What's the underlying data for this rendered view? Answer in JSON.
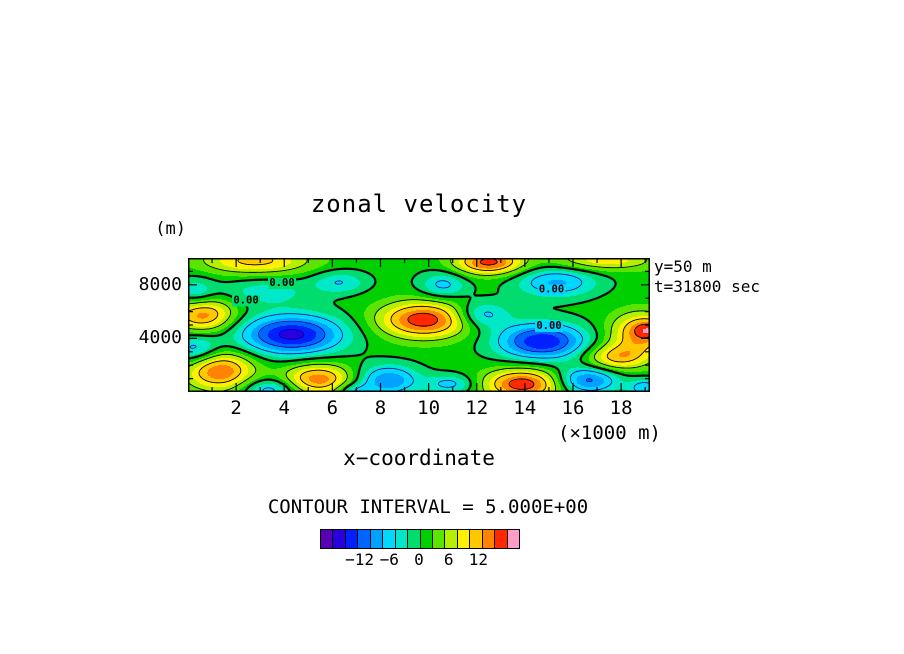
{
  "title": "zonal velocity",
  "y_axis": {
    "unit_label": "(m)",
    "ticks": [
      {
        "value": 8000,
        "label": "8000"
      },
      {
        "value": 4000,
        "label": "4000"
      }
    ]
  },
  "x_axis": {
    "label": "x−coordinate",
    "unit_label": "(×1000 m)",
    "ticks": [
      {
        "value": 2000,
        "label": "2"
      },
      {
        "value": 4000,
        "label": "4"
      },
      {
        "value": 6000,
        "label": "6"
      },
      {
        "value": 8000,
        "label": "8"
      },
      {
        "value": 10000,
        "label": "10"
      },
      {
        "value": 12000,
        "label": "12"
      },
      {
        "value": 14000,
        "label": "14"
      },
      {
        "value": 16000,
        "label": "16"
      },
      {
        "value": 18000,
        "label": "18"
      }
    ]
  },
  "annotations": {
    "slice": "y=50 m",
    "time": "t=31800 sec"
  },
  "contour_note": "CONTOUR INTERVAL = 5.000E+00",
  "colorbar": {
    "min": -20,
    "max": 20,
    "colors": [
      "#5a00b4",
      "#2800e0",
      "#0020ff",
      "#0064ff",
      "#00a2ff",
      "#00d8ff",
      "#00e8c8",
      "#00dc6e",
      "#00d000",
      "#5ae400",
      "#b4f000",
      "#fff000",
      "#ffc800",
      "#ff8200",
      "#ff2800",
      "#ff9cc8"
    ],
    "labels": [
      {
        "value": -12,
        "label": "−12"
      },
      {
        "value": -6,
        "label": "−6"
      },
      {
        "value": 0,
        "label": "0"
      },
      {
        "value": 6,
        "label": "6"
      },
      {
        "value": 12,
        "label": "12"
      }
    ]
  },
  "chart_data": {
    "type": "heatmap",
    "title": "zonal velocity",
    "xlabel": "x−coordinate (×1000 m)",
    "ylabel": "(m)",
    "x_range": [
      0,
      19200
    ],
    "y_range": [
      0,
      10000
    ],
    "contour_interval": 5.0,
    "fill_interval": 2.5,
    "line_levels_negative": [
      -15,
      -10,
      -5
    ],
    "line_level_zero": 0,
    "line_levels_positive": [
      5,
      10,
      15
    ],
    "line_colors": {
      "negative": "#0000a0",
      "zero": "#000000",
      "positive": "#000000"
    },
    "x_minor_tick_step": 1000,
    "x_major_tick_step": 2000,
    "y_minor_tick_step": 1000,
    "y_major_tick_step": 4000,
    "base_value": 1.0,
    "blobs": [
      {
        "x": 2800,
        "y": 9800,
        "amp": 10,
        "sx": 1600,
        "sy": 700
      },
      {
        "x": 12500,
        "y": 9700,
        "amp": 15,
        "sx": 1000,
        "sy": 650
      },
      {
        "x": 17300,
        "y": 9850,
        "amp": 8,
        "sx": 1500,
        "sy": 550
      },
      {
        "x": 15300,
        "y": 8200,
        "amp": -9,
        "sx": 1200,
        "sy": 800
      },
      {
        "x": 10600,
        "y": 8000,
        "amp": -7,
        "sx": 700,
        "sy": 700
      },
      {
        "x": 6300,
        "y": 8200,
        "amp": -6,
        "sx": 800,
        "sy": 600
      },
      {
        "x": 300,
        "y": 7400,
        "amp": -6,
        "sx": 600,
        "sy": 800
      },
      {
        "x": 3200,
        "y": 7500,
        "amp": -5,
        "sx": 1300,
        "sy": 700
      },
      {
        "x": 9800,
        "y": 5400,
        "amp": 16,
        "sx": 1300,
        "sy": 950
      },
      {
        "x": 600,
        "y": 5800,
        "amp": 13,
        "sx": 900,
        "sy": 900
      },
      {
        "x": 4300,
        "y": 4300,
        "amp": -17,
        "sx": 1500,
        "sy": 1050
      },
      {
        "x": 14700,
        "y": 3800,
        "amp": -16,
        "sx": 1300,
        "sy": 950
      },
      {
        "x": 12200,
        "y": 5800,
        "amp": -8,
        "sx": 800,
        "sy": 700
      },
      {
        "x": 18800,
        "y": 4400,
        "amp": 12,
        "sx": 900,
        "sy": 1100
      },
      {
        "x": 19200,
        "y": 4700,
        "amp": 6,
        "sx": 500,
        "sy": 500
      },
      {
        "x": 1300,
        "y": 1600,
        "amp": 14,
        "sx": 1000,
        "sy": 1000
      },
      {
        "x": 5400,
        "y": 1000,
        "amp": 13,
        "sx": 1000,
        "sy": 800
      },
      {
        "x": 3400,
        "y": 200,
        "amp": -8,
        "sx": 800,
        "sy": 600
      },
      {
        "x": 8300,
        "y": 900,
        "amp": -11,
        "sx": 900,
        "sy": 800
      },
      {
        "x": 10900,
        "y": 600,
        "amp": -7,
        "sx": 700,
        "sy": 500
      },
      {
        "x": 13900,
        "y": 600,
        "amp": 16,
        "sx": 1100,
        "sy": 800
      },
      {
        "x": 16600,
        "y": 900,
        "amp": -12,
        "sx": 900,
        "sy": 700
      },
      {
        "x": 19000,
        "y": 300,
        "amp": -8,
        "sx": 500,
        "sy": 500
      },
      {
        "x": 6900,
        "y": 100,
        "amp": -6,
        "sx": 500,
        "sy": 400
      },
      {
        "x": 300,
        "y": 3200,
        "amp": -8,
        "sx": 700,
        "sy": 800
      },
      {
        "x": 17800,
        "y": 2600,
        "amp": 10,
        "sx": 900,
        "sy": 700
      }
    ],
    "contour_labels": [
      {
        "x": 3900,
        "y": 8100,
        "text": "0.00"
      },
      {
        "x": 2400,
        "y": 6800,
        "text": "0.00"
      },
      {
        "x": 15100,
        "y": 7600,
        "text": "0.00"
      },
      {
        "x": 15000,
        "y": 4900,
        "text": "0.00"
      }
    ]
  }
}
